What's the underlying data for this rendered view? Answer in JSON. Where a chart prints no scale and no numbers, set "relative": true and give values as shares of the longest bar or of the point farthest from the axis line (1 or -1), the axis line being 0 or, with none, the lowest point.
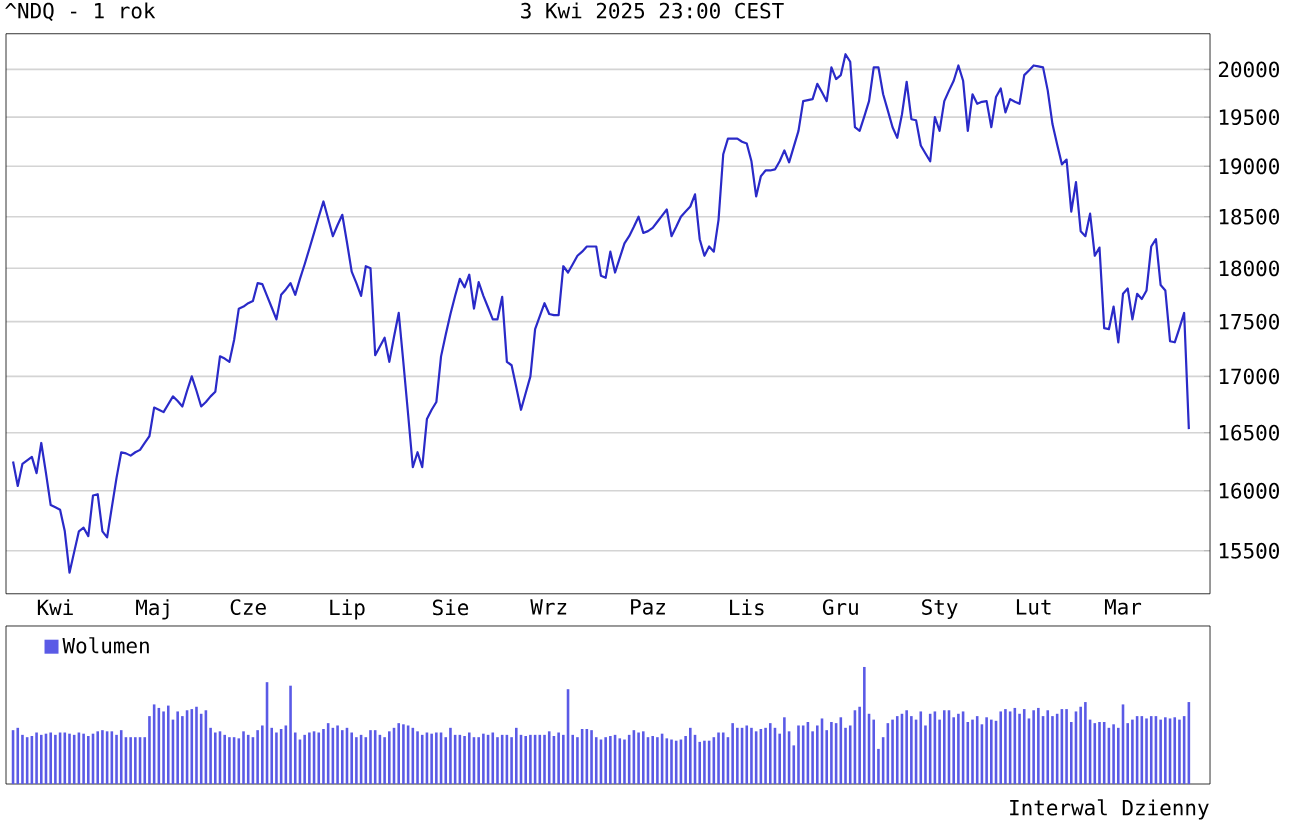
{
  "chart_data": [
    {
      "type": "line",
      "title": "^NDQ - 1 rok",
      "subtitle": "3 Kwi 2025 23:00 CEST",
      "categories": [
        null,
        null,
        null,
        null,
        null,
        null,
        null,
        null,
        null,
        "Kwi",
        null,
        null,
        null,
        null,
        null,
        null,
        null,
        null,
        null,
        null,
        null,
        null,
        null,
        null,
        null,
        null,
        null,
        null,
        null,
        null,
        "Maj",
        null,
        null,
        null,
        null,
        null,
        null,
        null,
        null,
        null,
        null,
        null,
        null,
        null,
        null,
        null,
        null,
        null,
        null,
        null,
        "Cze",
        null,
        null,
        null,
        null,
        null,
        null,
        null,
        null,
        null,
        null,
        null,
        null,
        null,
        null,
        null,
        null,
        null,
        null,
        null,
        null,
        "Lip",
        null,
        null,
        null,
        null,
        null,
        null,
        null,
        null,
        null,
        null,
        null,
        null,
        null,
        null,
        null,
        null,
        null,
        null,
        null,
        null,
        null,
        "Sie",
        null,
        null,
        null,
        null,
        null,
        null,
        null,
        null,
        null,
        null,
        null,
        null,
        null,
        null,
        null,
        null,
        null,
        null,
        null,
        null,
        "Wrz",
        null,
        null,
        null,
        null,
        null,
        null,
        null,
        null,
        null,
        null,
        null,
        null,
        null,
        null,
        null,
        null,
        null,
        null,
        null,
        null,
        "Paz",
        null,
        null,
        null,
        null,
        null,
        null,
        null,
        null,
        null,
        null,
        null,
        null,
        null,
        null,
        null,
        null,
        null,
        null,
        null,
        null,
        "Lis",
        null,
        null,
        null,
        null,
        null,
        null,
        null,
        null,
        null,
        null,
        null,
        null,
        null,
        null,
        null,
        null,
        null,
        null,
        null,
        "Gru",
        null,
        null,
        null,
        null,
        null,
        null,
        null,
        null,
        null,
        null,
        null,
        null,
        null,
        null,
        null,
        null,
        null,
        null,
        null,
        null,
        "Sty",
        null,
        null,
        null,
        null,
        null,
        null,
        null,
        null,
        null,
        null,
        null,
        null,
        null,
        null,
        null,
        null,
        null,
        null,
        null,
        "Lut",
        null,
        null,
        null,
        null,
        null,
        null,
        null,
        null,
        null,
        null,
        null,
        null,
        null,
        null,
        null,
        null,
        null,
        null,
        "Mar",
        null,
        null,
        null,
        null,
        null,
        null,
        null,
        null,
        null,
        null,
        null,
        null,
        null,
        null
      ],
      "series": [
        {
          "color": "#2a2ac8",
          "values": [
            16250,
            16040,
            16230,
            16260,
            16290,
            16150,
            16410,
            16150,
            15880,
            15860,
            15840,
            15660,
            15320,
            15490,
            15660,
            15690,
            15620,
            15960,
            15970,
            15660,
            15610,
            15860,
            16110,
            16330,
            16320,
            16300,
            16330,
            16350,
            16410,
            16470,
            16720,
            16700,
            16680,
            16750,
            16820,
            16780,
            16730,
            16870,
            17000,
            16870,
            16730,
            16770,
            16820,
            16860,
            17180,
            17160,
            17130,
            17330,
            17620,
            17640,
            17670,
            17690,
            17860,
            17850,
            17740,
            17630,
            17520,
            17750,
            17800,
            17860,
            17750,
            17900,
            18040,
            18190,
            18340,
            18500,
            18650,
            18480,
            18310,
            18420,
            18520,
            18250,
            17970,
            17860,
            17740,
            18020,
            18000,
            17190,
            17270,
            17350,
            17130,
            17360,
            17580,
            17120,
            16660,
            16200,
            16330,
            16200,
            16620,
            16700,
            16770,
            17180,
            17380,
            17570,
            17740,
            17900,
            17820,
            17940,
            17620,
            17870,
            17740,
            17630,
            17520,
            17520,
            17730,
            17130,
            17100,
            16900,
            16700,
            16850,
            17000,
            17430,
            17550,
            17670,
            17570,
            17560,
            17560,
            18020,
            17960,
            18040,
            18120,
            18160,
            18210,
            18210,
            18210,
            17930,
            17910,
            18160,
            17960,
            18100,
            18240,
            18310,
            18400,
            18500,
            18340,
            18360,
            18390,
            18450,
            18510,
            18570,
            18310,
            18400,
            18500,
            18550,
            18600,
            18720,
            18280,
            18120,
            18210,
            18160,
            18470,
            19120,
            19280,
            19280,
            19280,
            19250,
            19230,
            19050,
            18700,
            18900,
            18960,
            18960,
            18970,
            19050,
            19160,
            19040,
            19200,
            19360,
            19670,
            19680,
            19690,
            19850,
            19760,
            19670,
            20020,
            19900,
            19940,
            20160,
            20080,
            19400,
            19360,
            19510,
            19670,
            20020,
            20020,
            19740,
            19570,
            19400,
            19290,
            19530,
            19870,
            19480,
            19470,
            19210,
            19130,
            19050,
            19500,
            19360,
            19670,
            19780,
            19880,
            20040,
            19880,
            19360,
            19740,
            19640,
            19660,
            19670,
            19400,
            19710,
            19800,
            19550,
            19690,
            19660,
            19640,
            19940,
            19990,
            20040,
            20030,
            20020,
            19780,
            19430,
            19220,
            19020,
            19070,
            18550,
            18840,
            18360,
            18310,
            18530,
            18120,
            18200,
            17440,
            17430,
            17640,
            17310,
            17760,
            17810,
            17520,
            17760,
            17710,
            17790,
            18210,
            18280,
            17840,
            17790,
            17320,
            17310,
            17440,
            17580,
            16530
          ]
        }
      ],
      "ylim": [
        15150,
        20380
      ],
      "yticks": [
        15500,
        16000,
        16500,
        17000,
        17500,
        18000,
        18500,
        19000,
        19500,
        20000
      ],
      "log": true,
      "grid": "y"
    },
    {
      "type": "bar",
      "relative": true,
      "legend": "top left",
      "annotations": [
        "Interwal Dzienny"
      ],
      "categories": [
        null,
        null,
        null,
        null,
        null,
        null,
        null,
        null,
        null,
        null,
        null,
        null,
        null,
        null,
        null,
        null,
        null,
        null,
        null,
        null,
        null,
        null,
        null,
        null,
        null,
        null,
        null,
        null,
        null,
        null,
        null,
        null,
        null,
        null,
        null,
        null,
        null,
        null,
        null,
        null,
        null,
        null,
        null,
        null,
        null,
        null,
        null,
        null,
        null,
        null,
        null,
        null,
        null,
        null,
        null,
        null,
        null,
        null,
        null,
        null,
        null,
        null,
        null,
        null,
        null,
        null,
        null,
        null,
        null,
        null,
        null,
        null,
        null,
        null,
        null,
        null,
        null,
        null,
        null,
        null,
        null,
        null,
        null,
        null,
        null,
        null,
        null,
        null,
        null,
        null,
        null,
        null,
        null,
        null,
        null,
        null,
        null,
        null,
        null,
        null,
        null,
        null,
        null,
        null,
        null,
        null,
        null,
        null,
        null,
        null,
        null,
        null,
        null,
        null,
        null,
        null,
        null,
        null,
        null,
        null,
        null,
        null,
        null,
        null,
        null,
        null,
        null,
        null,
        null,
        null,
        null,
        null,
        null,
        null,
        null,
        null,
        null,
        null,
        null,
        null,
        null,
        null,
        null,
        null,
        null,
        null,
        null,
        null,
        null,
        null,
        null,
        null,
        null,
        null,
        null,
        null,
        null,
        null,
        null,
        null,
        null,
        null,
        null,
        null,
        null,
        null,
        null,
        null,
        null,
        null,
        null,
        null,
        null,
        null,
        null,
        null,
        null,
        null,
        null,
        null,
        null,
        null,
        null,
        null,
        null,
        null,
        null,
        null,
        null,
        null,
        null,
        null,
        null,
        null,
        null,
        null,
        null,
        null,
        null,
        null,
        null,
        null,
        null,
        null,
        null,
        null,
        null,
        null,
        null,
        null,
        null,
        null,
        null,
        null,
        null,
        null,
        null,
        null,
        null,
        null,
        null,
        null,
        null,
        null,
        null,
        null,
        null,
        null,
        null,
        null,
        null,
        null,
        null,
        null,
        null,
        null,
        null,
        null,
        null,
        null,
        null,
        null,
        null,
        null,
        null,
        null,
        null,
        null,
        null,
        null,
        null
      ],
      "series": [
        {
          "name": "Wolumen",
          "color": "#5a5ae6",
          "values": [
            0.46,
            0.48,
            0.42,
            0.4,
            0.41,
            0.44,
            0.42,
            0.43,
            0.44,
            0.42,
            0.44,
            0.44,
            0.43,
            0.42,
            0.44,
            0.43,
            0.41,
            0.43,
            0.45,
            0.46,
            0.45,
            0.45,
            0.42,
            0.46,
            0.4,
            0.4,
            0.4,
            0.4,
            0.4,
            0.58,
            0.68,
            0.65,
            0.62,
            0.67,
            0.55,
            0.62,
            0.58,
            0.63,
            0.64,
            0.66,
            0.6,
            0.63,
            0.48,
            0.44,
            0.45,
            0.42,
            0.4,
            0.4,
            0.39,
            0.45,
            0.42,
            0.4,
            0.46,
            0.5,
            0.87,
            0.48,
            0.44,
            0.47,
            0.5,
            0.84,
            0.44,
            0.38,
            0.42,
            0.44,
            0.45,
            0.44,
            0.47,
            0.52,
            0.48,
            0.5,
            0.46,
            0.48,
            0.44,
            0.4,
            0.42,
            0.4,
            0.46,
            0.46,
            0.42,
            0.4,
            0.45,
            0.48,
            0.52,
            0.51,
            0.5,
            0.48,
            0.45,
            0.42,
            0.44,
            0.43,
            0.44,
            0.44,
            0.4,
            0.48,
            0.42,
            0.42,
            0.41,
            0.44,
            0.4,
            0.4,
            0.43,
            0.42,
            0.44,
            0.4,
            0.42,
            0.42,
            0.4,
            0.48,
            0.42,
            0.41,
            0.42,
            0.42,
            0.42,
            0.42,
            0.45,
            0.41,
            0.44,
            0.42,
            0.81,
            0.42,
            0.4,
            0.47,
            0.47,
            0.46,
            0.4,
            0.38,
            0.4,
            0.41,
            0.42,
            0.39,
            0.38,
            0.42,
            0.46,
            0.44,
            0.45,
            0.4,
            0.41,
            0.4,
            0.43,
            0.39,
            0.38,
            0.37,
            0.38,
            0.41,
            0.48,
            0.42,
            0.36,
            0.37,
            0.37,
            0.4,
            0.44,
            0.44,
            0.4,
            0.52,
            0.48,
            0.48,
            0.5,
            0.48,
            0.45,
            0.47,
            0.48,
            0.52,
            0.48,
            0.43,
            0.57,
            0.45,
            0.33,
            0.5,
            0.5,
            0.53,
            0.45,
            0.5,
            0.56,
            0.46,
            0.53,
            0.52,
            0.57,
            0.48,
            0.5,
            0.63,
            0.66,
            1,
            0.6,
            0.55,
            0.3,
            0.4,
            0.52,
            0.55,
            0.58,
            0.6,
            0.63,
            0.58,
            0.55,
            0.62,
            0.5,
            0.6,
            0.62,
            0.55,
            0.63,
            0.63,
            0.57,
            0.6,
            0.62,
            0.53,
            0.55,
            0.58,
            0.51,
            0.57,
            0.55,
            0.54,
            0.62,
            0.64,
            0.62,
            0.65,
            0.6,
            0.64,
            0.56,
            0.63,
            0.65,
            0.58,
            0.63,
            0.58,
            0.6,
            0.64,
            0.64,
            0.53,
            0.62,
            0.66,
            0.7,
            0.55,
            0.52,
            0.53,
            0.53,
            0.48,
            0.51,
            0.48,
            0.68,
            0.52,
            0.55,
            0.58,
            0.58,
            0.56,
            0.58,
            0.58,
            0.55,
            0.57,
            0.56,
            0.57,
            0.55,
            0.58,
            0.7
          ]
        }
      ]
    }
  ]
}
